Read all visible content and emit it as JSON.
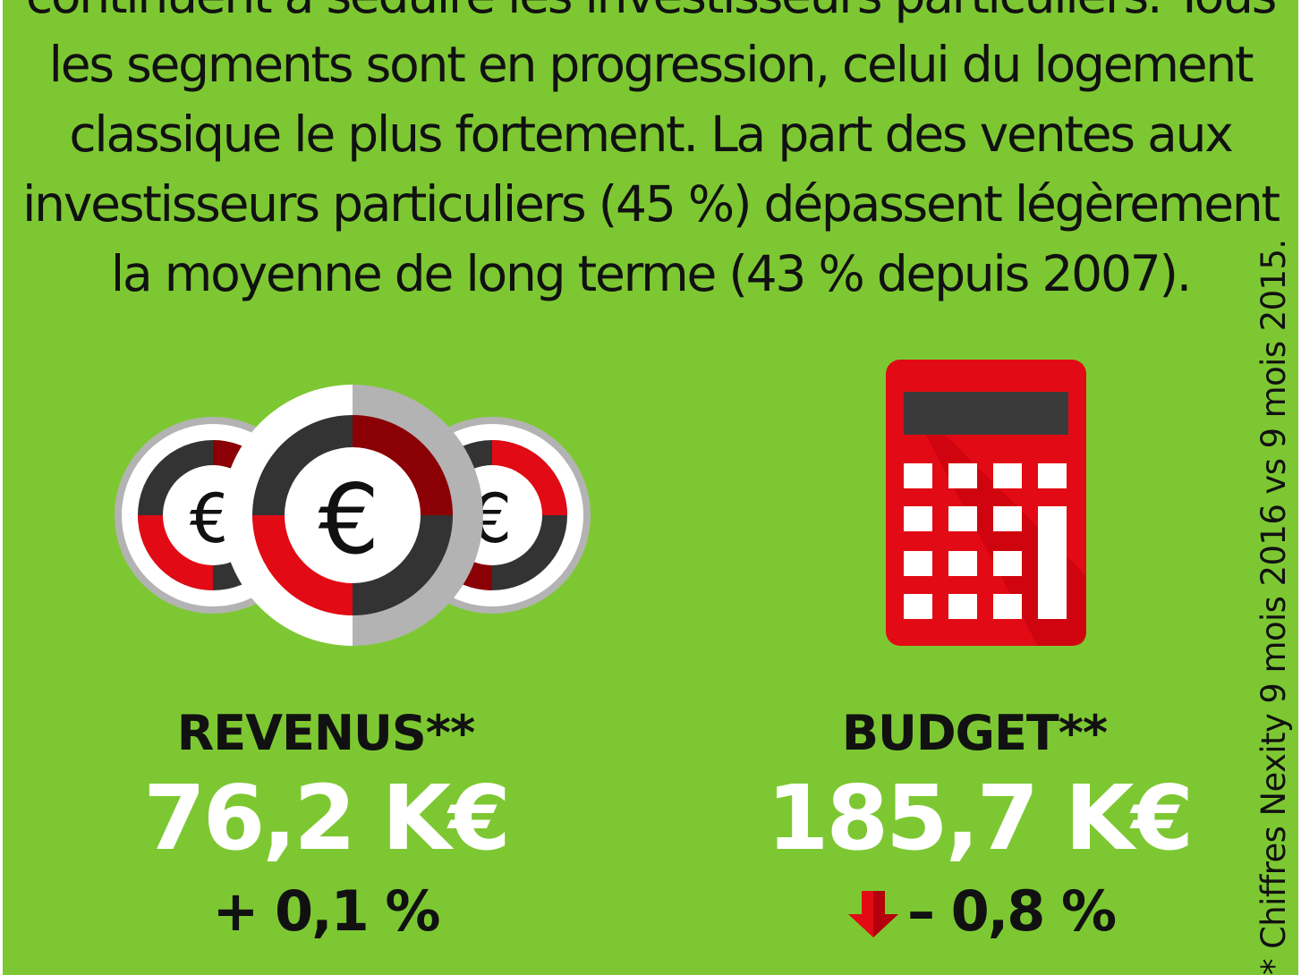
{
  "intro_lines": [
    "continuent à séduire les investisseurs particuliers. Tous",
    "les segments sont en progression, celui du logement",
    "classique le plus fortement. La part des ventes aux",
    "investisseurs particuliers (45 %) dépassent légèrement",
    "la moyenne de long terme (43 % depuis 2007)."
  ],
  "revenus": {
    "label": "REVENUS**",
    "value": "76,2 K€",
    "change": "+ 0,1 %",
    "icon": "euro-coins-icon",
    "coin_symbol": "€"
  },
  "budget": {
    "label": "BUDGET**",
    "value": "185,7 K€",
    "change": "– 0,8 %",
    "trend": "down",
    "icon": "calculator-icon"
  },
  "source": "* Chiffres Nexity 9 mois 2016 vs 9 mois 2015.",
  "colors": {
    "background": "#7dc832",
    "red": "#e20a14",
    "dark_red": "#8a0004",
    "dark_grey": "#333333",
    "light_grey": "#b3b3b3",
    "white": "#ffffff"
  }
}
